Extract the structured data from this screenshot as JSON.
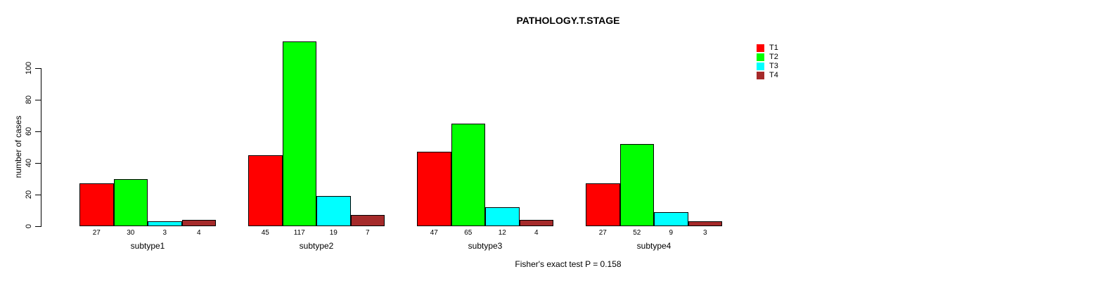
{
  "chart_data": {
    "type": "bar",
    "title": "PATHOLOGY.T.STAGE",
    "ylabel": "number of cases",
    "xlabel": "",
    "categories": [
      "subtype1",
      "subtype2",
      "subtype3",
      "subtype4"
    ],
    "series": [
      {
        "name": "T1",
        "color": "#FF0000",
        "values": [
          27,
          45,
          47,
          27
        ]
      },
      {
        "name": "T2",
        "color": "#00FF00",
        "values": [
          30,
          117,
          65,
          52
        ]
      },
      {
        "name": "T3",
        "color": "#00FFFF",
        "values": [
          3,
          19,
          12,
          9
        ]
      },
      {
        "name": "T4",
        "color": "#A52A2A",
        "values": [
          4,
          7,
          4,
          3
        ]
      }
    ],
    "yticks": [
      0,
      20,
      40,
      60,
      80,
      100
    ],
    "ylim": [
      0,
      120
    ],
    "grid": false,
    "legend_position": "top-right",
    "bar_value_labels": true,
    "annotation": "Fisher's exact test P = 0.158"
  },
  "colors": {
    "axis": "#000000",
    "background": "#ffffff",
    "bar_border": "#000000"
  }
}
